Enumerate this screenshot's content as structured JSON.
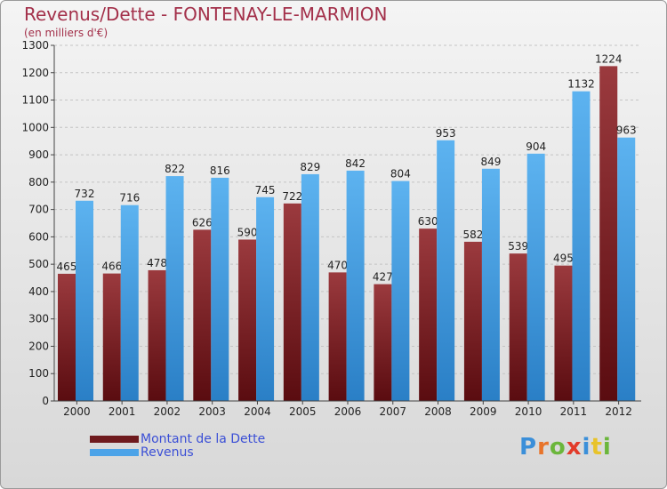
{
  "colors": {
    "dette": "#7a1c20",
    "revenus": "#4ca3e8",
    "title": "#a3304a",
    "legend_text": "#3b4fd6"
  },
  "chart_data": {
    "type": "bar",
    "title": "Revenus/Dette - FONTENAY-LE-MARMION",
    "subtitle": "(en milliers d'€)",
    "categories": [
      "2000",
      "2001",
      "2002",
      "2003",
      "2004",
      "2005",
      "2006",
      "2007",
      "2008",
      "2009",
      "2010",
      "2011",
      "2012"
    ],
    "series": [
      {
        "name": "Montant de la Dette",
        "values": [
          465,
          466,
          478,
          626,
          590,
          722,
          470,
          427,
          630,
          582,
          539,
          495,
          1224
        ]
      },
      {
        "name": "Revenus",
        "values": [
          732,
          716,
          822,
          816,
          745,
          829,
          842,
          804,
          953,
          849,
          904,
          1132,
          963
        ]
      }
    ],
    "ylim": [
      0,
      1300
    ],
    "yticks": [
      0,
      100,
      200,
      300,
      400,
      500,
      600,
      700,
      800,
      900,
      1000,
      1100,
      1200,
      1300
    ],
    "grid": true,
    "legend": "bottom-left"
  },
  "logo": {
    "text": "Proxiti",
    "letters": [
      "P",
      "r",
      "o",
      "x",
      "i",
      "t",
      "i"
    ]
  }
}
